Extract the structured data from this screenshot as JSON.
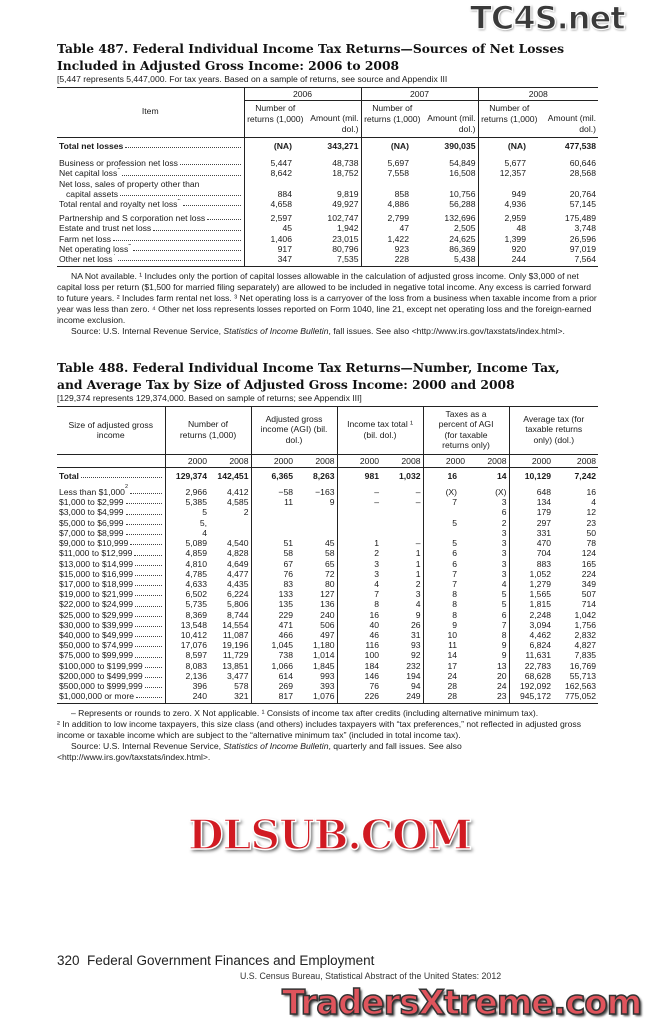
{
  "watermarks": {
    "top": "TC4S.net",
    "middle": "DLSUB.COM",
    "bottom": "TradersXtreme.com"
  },
  "t487": {
    "title1": "Table 487. Federal Individual Income Tax Returns—Sources of Net Losses",
    "title2": "Included in Adjusted Gross Income: 2006 to 2008",
    "subtitle": "[5,447  represents 5,447,000. For tax years. Based on a sample of returns, see source and Appendix III",
    "item_header": "Item",
    "years": [
      "2006",
      "2007",
      "2008"
    ],
    "col_number": "Number of returns (1,000)",
    "col_amount": "Amount (mil. dol.)",
    "rows": [
      {
        "label": "Total net losses",
        "note": "",
        "bold": true,
        "values": [
          "(NA)",
          "343,271",
          "(NA)",
          "390,035",
          "(NA)",
          "477,538"
        ]
      },
      {
        "label": "Business or profession net loss",
        "note": "",
        "values": [
          "5,447",
          "48,738",
          "5,697",
          "54,849",
          "5,677",
          "60,646"
        ]
      },
      {
        "label": "Net capital loss",
        "note": "1",
        "values": [
          "8,642",
          "18,752",
          "7,558",
          "16,508",
          "12,357",
          "28,568"
        ]
      },
      {
        "label": "Net loss, sales of property other than",
        "label2": "capital assets",
        "note": "",
        "values": [
          "884",
          "9,819",
          "858",
          "10,756",
          "949",
          "20,764"
        ]
      },
      {
        "label": "Total rental and royalty net loss",
        "note": "2",
        "values": [
          "4,658",
          "49,927",
          "4,886",
          "56,288",
          "4,936",
          "57,145"
        ]
      },
      {
        "label": "Partnership and S corporation net loss",
        "note": "",
        "gap": true,
        "values": [
          "2,597",
          "102,747",
          "2,799",
          "132,696",
          "2,959",
          "175,489"
        ]
      },
      {
        "label": "Estate and trust net loss",
        "note": "",
        "values": [
          "45",
          "1,942",
          "47",
          "2,505",
          "48",
          "3,748"
        ]
      },
      {
        "label": "Farm net loss",
        "note": "",
        "values": [
          "1,406",
          "23,015",
          "1,422",
          "24,625",
          "1,399",
          "26,596"
        ]
      },
      {
        "label": "Net operating loss",
        "note": "3",
        "values": [
          "917",
          "80,796",
          "923",
          "86,369",
          "920",
          "97,019"
        ]
      },
      {
        "label": "Other net loss",
        "note": "4",
        "values": [
          "347",
          "7,535",
          "228",
          "5,438",
          "244",
          "7,564"
        ]
      }
    ],
    "footnote": "NA Not available. ¹ Includes only the portion of capital losses allowable in the calculation of adjusted gross income. Only $3,000 of net capital loss per return ($1,500 for married filing separately) are allowed to be included in negative total income. Any excess is carried forward to future years. ² Includes farm rental net loss. ³ Net operating loss is a carryover of the loss from a business when taxable income from a prior year was less than zero. ⁴ Other net loss represents losses reported on Form 1040, line 21, except net operating loss and the foreign-earned income exclusion.",
    "source_prefix": "Source: U.S. Internal Revenue Service, ",
    "source_italic": "Statistics of Income Bulletin",
    "source_suffix": ", fall issues. See also <http://www.irs.gov/taxstats/index.html>."
  },
  "t488": {
    "title1": "Table 488. Federal Individual Income Tax Returns—Number, Income Tax,",
    "title2": "and Average Tax by Size of Adjusted Gross Income: 2000 and 2008",
    "subtitle": "[129,374 represents 129,374,000. Based on sample of returns; see Appendix III]",
    "size_header": "Size of adjusted gross income",
    "groups": [
      "Number of returns (1,000)",
      "Adjusted gross income (AGI) (bil. dol.)",
      "Income tax total ¹ (bil. dol.)",
      "Taxes as a percent of AGI (for taxable returns only)",
      "Average tax (for taxable returns only) (dol.)"
    ],
    "years": [
      "2000",
      "2008"
    ],
    "rows": [
      {
        "label": "Total",
        "bold": true,
        "values": [
          "129,374",
          "142,451",
          "6,365",
          "8,263",
          "981",
          "1,032",
          "16",
          "14",
          "10,129",
          "7,242"
        ]
      },
      {
        "label": "Less than $1,000",
        "note": "2",
        "gap": true,
        "values": [
          "2,966",
          "4,412",
          "−58",
          "−163",
          "–",
          "–",
          "(X)",
          "(X)",
          "648",
          "16"
        ]
      },
      {
        "label": "$1,000 to $2,999",
        "values": [
          "5,385",
          "4,585",
          "11",
          "9",
          "–",
          "–",
          "7",
          "3",
          "134",
          "4"
        ]
      },
      {
        "label": "$3,000 to $4,999",
        "values": [
          "5",
          "2",
          "",
          "",
          "",
          "",
          "",
          "6",
          "179",
          "12"
        ]
      },
      {
        "label": "$5,000 to $6,999",
        "values": [
          "5,",
          "",
          "",
          "",
          "",
          "",
          "5",
          "2",
          "297",
          "23"
        ]
      },
      {
        "label": "$7,000 to $8,999",
        "values": [
          "4",
          "",
          "",
          "",
          "",
          "",
          "",
          "3",
          "331",
          "50"
        ]
      },
      {
        "label": "$9,000 to $10,999",
        "values": [
          "5,089",
          "4,540",
          "51",
          "45",
          "1",
          "–",
          "5",
          "3",
          "470",
          "78"
        ]
      },
      {
        "label": "$11,000 to $12,999",
        "values": [
          "4,859",
          "4,828",
          "58",
          "58",
          "2",
          "1",
          "6",
          "3",
          "704",
          "124"
        ]
      },
      {
        "label": "$13,000 to $14,999",
        "values": [
          "4,810",
          "4,649",
          "67",
          "65",
          "3",
          "1",
          "6",
          "3",
          "883",
          "165"
        ]
      },
      {
        "label": "$15,000 to $16,999",
        "values": [
          "4,785",
          "4,477",
          "76",
          "72",
          "3",
          "1",
          "7",
          "3",
          "1,052",
          "224"
        ]
      },
      {
        "label": "$17,000 to $18,999",
        "values": [
          "4,633",
          "4,435",
          "83",
          "80",
          "4",
          "2",
          "7",
          "4",
          "1,279",
          "349"
        ]
      },
      {
        "label": "$19,000 to $21,999",
        "values": [
          "6,502",
          "6,224",
          "133",
          "127",
          "7",
          "3",
          "8",
          "5",
          "1,565",
          "507"
        ]
      },
      {
        "label": "$22,000 to $24,999",
        "values": [
          "5,735",
          "5,806",
          "135",
          "136",
          "8",
          "4",
          "8",
          "5",
          "1,815",
          "714"
        ]
      },
      {
        "label": "$25,000 to $29,999",
        "values": [
          "8,369",
          "8,744",
          "229",
          "240",
          "16",
          "9",
          "8",
          "6",
          "2,248",
          "1,042"
        ]
      },
      {
        "label": "$30,000 to $39,999",
        "values": [
          "13,548",
          "14,554",
          "471",
          "506",
          "40",
          "26",
          "9",
          "7",
          "3,094",
          "1,756"
        ]
      },
      {
        "label": "$40,000 to $49,999",
        "values": [
          "10,412",
          "11,087",
          "466",
          "497",
          "46",
          "31",
          "10",
          "8",
          "4,462",
          "2,832"
        ]
      },
      {
        "label": "$50,000 to $74,999",
        "values": [
          "17,076",
          "19,196",
          "1,045",
          "1,180",
          "116",
          "93",
          "11",
          "9",
          "6,824",
          "4,827"
        ]
      },
      {
        "label": "$75,000 to $99,999",
        "values": [
          "8,597",
          "11,729",
          "738",
          "1,014",
          "100",
          "92",
          "14",
          "9",
          "11,631",
          "7,835"
        ]
      },
      {
        "label": "$100,000 to $199,999",
        "values": [
          "8,083",
          "13,851",
          "1,066",
          "1,845",
          "184",
          "232",
          "17",
          "13",
          "22,783",
          "16,769"
        ]
      },
      {
        "label": "$200,000 to $499,999",
        "values": [
          "2,136",
          "3,477",
          "614",
          "993",
          "146",
          "194",
          "24",
          "20",
          "68,628",
          "55,713"
        ]
      },
      {
        "label": "$500,000 to $999,999",
        "values": [
          "396",
          "578",
          "269",
          "393",
          "76",
          "94",
          "28",
          "24",
          "192,092",
          "162,563"
        ]
      },
      {
        "label": "$1,000,000 or more",
        "values": [
          "240",
          "321",
          "817",
          "1,076",
          "226",
          "249",
          "28",
          "23",
          "945,172",
          "775,052"
        ]
      }
    ],
    "footnote1": "– Represents or rounds to zero. X Not applicable. ¹ Consists of income tax after credits (including alternative minimum tax).",
    "footnote2": "² In addition to low income taxpayers, this size class (and others) includes taxpayers with “tax preferences,” not reflected in adjusted gross income or taxable income which are subject to the “alternative minimum tax” (included in total income tax).",
    "source_prefix": "Source: U.S. Internal Revenue Service, ",
    "source_italic": "Statistics of Income Bulletin",
    "source_suffix": ", quarterly and fall issues. See also <http://www.irs.gov/taxstats/index.html>."
  },
  "footer": {
    "page_line": "320  Federal Government Finances and Employment",
    "census_line": "U.S. Census Bureau, Statistical Abstract of the United States: 2012"
  }
}
